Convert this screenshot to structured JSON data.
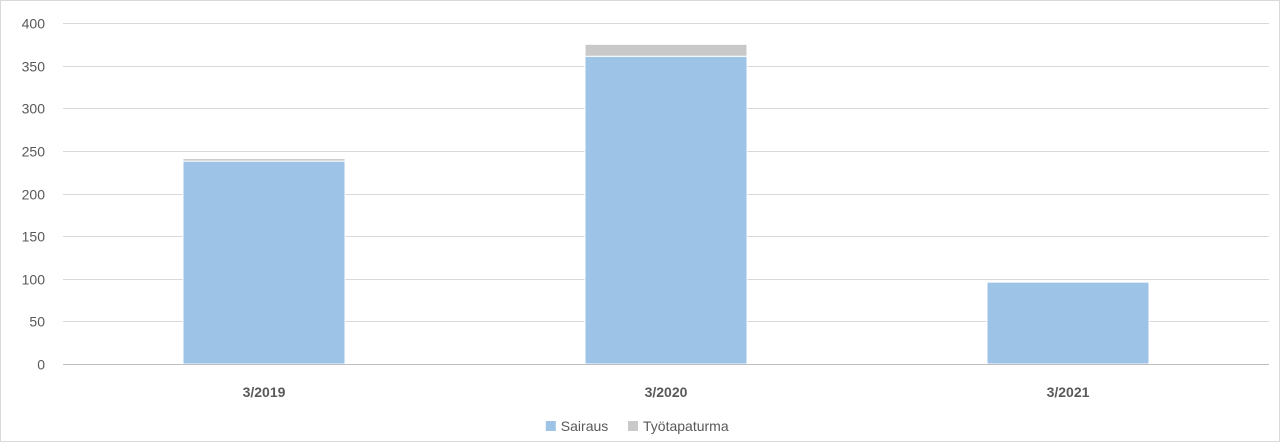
{
  "chart_data": {
    "type": "bar",
    "stacked": true,
    "categories": [
      "3/2019",
      "3/2020",
      "3/2021"
    ],
    "series": [
      {
        "name": "Sairaus",
        "values": [
          238,
          361,
          96
        ],
        "color": "#9DC3E6"
      },
      {
        "name": "Työtapaturma",
        "values": [
          3,
          14,
          0
        ],
        "color": "#C9C9C9"
      }
    ],
    "ylim": [
      0,
      400
    ],
    "yticks": [
      0,
      50,
      100,
      150,
      200,
      250,
      300,
      350,
      400
    ],
    "grid": true,
    "legend_position": "bottom-center",
    "colors": {
      "grid": "#D9D9D9",
      "axis": "#BFBFBF",
      "text": "#595959",
      "border": "#D9D9D9"
    }
  }
}
